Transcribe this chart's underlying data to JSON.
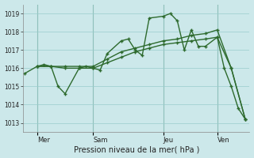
{
  "xlabel": "Pression niveau de la mer( hPa )",
  "bg_color": "#cce8ea",
  "line_color": "#2d6a2d",
  "grid_color": "#99cccc",
  "sep_color": "#7aaa9a",
  "ylim": [
    1012.5,
    1019.5
  ],
  "yticks": [
    1013,
    1014,
    1015,
    1016,
    1017,
    1018,
    1019
  ],
  "xlim": [
    0.0,
    8.4
  ],
  "day_labels": [
    "Mer",
    "Sam",
    "Jeu",
    "Ven"
  ],
  "day_positions": [
    0.52,
    2.6,
    5.2,
    7.2
  ],
  "series": [
    {
      "x": [
        0.05,
        0.52,
        0.78,
        1.04,
        1.3,
        1.56,
        2.08,
        2.34,
        2.6,
        2.86,
        3.12,
        3.64,
        3.9,
        4.16,
        4.42,
        4.68,
        5.2,
        5.46,
        5.72,
        5.98,
        6.24,
        6.5,
        6.76,
        7.2,
        7.46,
        7.72,
        7.98,
        8.24
      ],
      "y": [
        1015.7,
        1016.1,
        1016.2,
        1016.1,
        1015.0,
        1014.6,
        1016.0,
        1016.1,
        1016.0,
        1015.9,
        1016.8,
        1017.5,
        1017.6,
        1017.0,
        1016.7,
        1018.75,
        1018.85,
        1019.0,
        1018.6,
        1017.0,
        1018.1,
        1017.2,
        1017.2,
        1017.7,
        1016.0,
        1015.0,
        1013.8,
        1013.2
      ]
    },
    {
      "x": [
        0.52,
        1.04,
        1.56,
        2.08,
        2.6,
        3.12,
        3.64,
        4.16,
        4.68,
        5.2,
        5.72,
        6.24,
        6.76,
        7.2,
        7.72,
        8.24
      ],
      "y": [
        1016.1,
        1016.1,
        1016.1,
        1016.1,
        1016.1,
        1016.5,
        1016.9,
        1017.1,
        1017.3,
        1017.5,
        1017.6,
        1017.8,
        1017.9,
        1018.1,
        1016.0,
        1013.2
      ]
    },
    {
      "x": [
        0.52,
        1.04,
        1.56,
        2.08,
        2.6,
        3.12,
        3.64,
        4.16,
        4.68,
        5.2,
        5.72,
        6.24,
        6.76,
        7.2,
        7.72,
        8.24
      ],
      "y": [
        1016.1,
        1016.1,
        1016.0,
        1016.0,
        1016.0,
        1016.3,
        1016.6,
        1016.9,
        1017.1,
        1017.3,
        1017.4,
        1017.5,
        1017.6,
        1017.7,
        1016.0,
        1013.2
      ]
    }
  ]
}
